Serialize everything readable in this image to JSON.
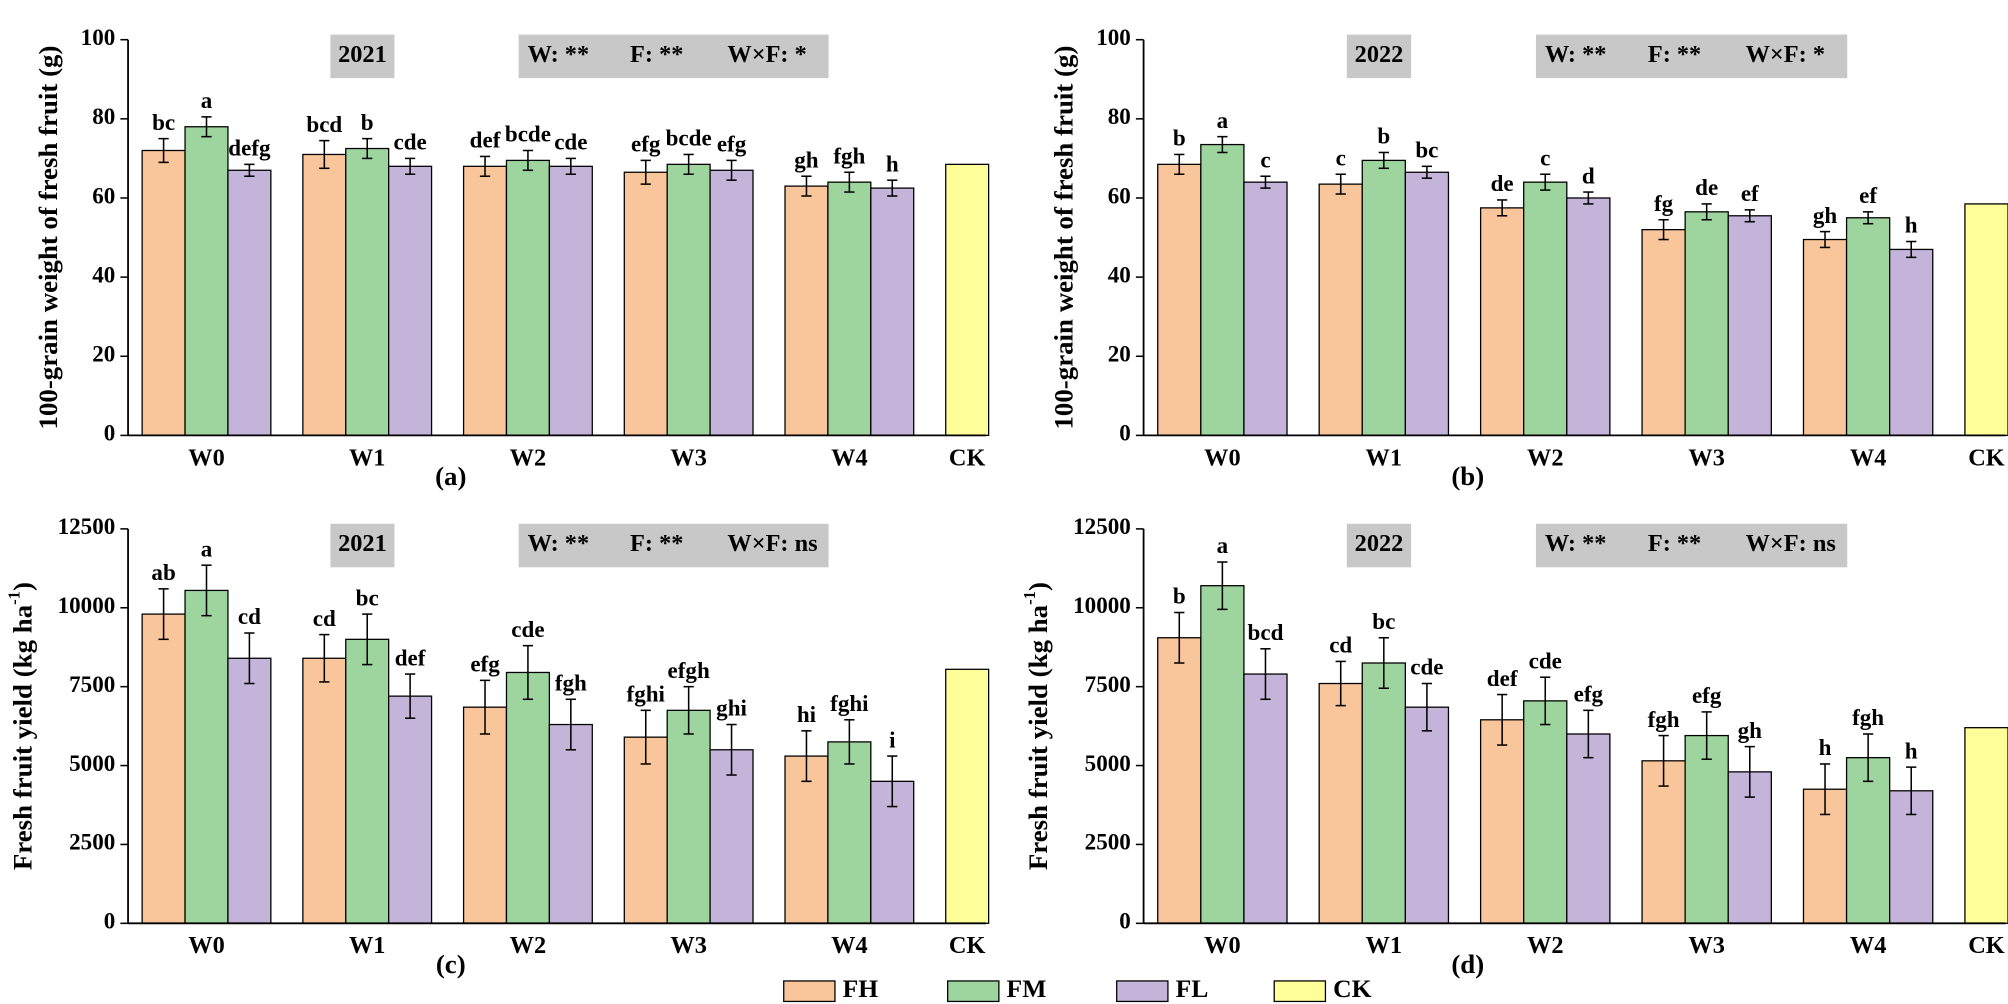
{
  "chart_data": [
    {
      "type": "bar",
      "title": "2021",
      "panel": "(a)",
      "annotations": [
        "W: **",
        "F: **",
        "W×F: *"
      ],
      "ylabel": [
        "100-grain weight of fresh fruit (g)"
      ],
      "categories": [
        "W0",
        "W1",
        "W2",
        "W3",
        "W4",
        "CK"
      ],
      "series": [
        {
          "name": "FH",
          "color": "#f9c59a",
          "values": [
            72,
            71,
            68,
            66.5,
            63,
            null
          ],
          "errors": [
            3,
            3.5,
            2.5,
            3,
            2.5,
            null
          ],
          "letters": [
            "bc",
            "bcd",
            "def",
            "efg",
            "gh",
            null
          ]
        },
        {
          "name": "FM",
          "color": "#9ed59e",
          "values": [
            78,
            72.5,
            69.5,
            68.5,
            64,
            null
          ],
          "errors": [
            2.5,
            2.5,
            2.5,
            2.5,
            2.5,
            null
          ],
          "letters": [
            "a",
            "b",
            "bcde",
            "bcde",
            "fgh",
            null
          ]
        },
        {
          "name": "FL",
          "color": "#c5b4d9",
          "values": [
            67,
            68,
            68,
            67,
            62.5,
            null
          ],
          "errors": [
            1.5,
            2,
            2,
            2.5,
            2,
            null
          ],
          "letters": [
            "defg",
            "cde",
            "cde",
            "efg",
            "h",
            null
          ]
        },
        {
          "name": "CK",
          "color": "#ffff99",
          "values": [
            null,
            null,
            null,
            null,
            null,
            68.5
          ]
        }
      ],
      "ylim": [
        0,
        100
      ],
      "yticks": [
        0,
        20,
        40,
        60,
        80,
        100
      ]
    },
    {
      "type": "bar",
      "title": "2022",
      "panel": "(b)",
      "annotations": [
        "W: **",
        "F: **",
        "W×F: *"
      ],
      "ylabel": [
        "100-grain weight of fresh fruit (g)"
      ],
      "categories": [
        "W0",
        "W1",
        "W2",
        "W3",
        "W4",
        "CK"
      ],
      "series": [
        {
          "name": "FH",
          "color": "#f9c59a",
          "values": [
            68.5,
            63.5,
            57.5,
            52,
            49.5,
            null
          ],
          "errors": [
            2.5,
            2.5,
            2,
            2.5,
            2,
            null
          ],
          "letters": [
            "b",
            "c",
            "de",
            "fg",
            "gh",
            null
          ]
        },
        {
          "name": "FM",
          "color": "#9ed59e",
          "values": [
            73.5,
            69.5,
            64,
            56.5,
            55,
            null
          ],
          "errors": [
            2,
            2,
            2,
            2,
            1.5,
            null
          ],
          "letters": [
            "a",
            "b",
            "c",
            "de",
            "ef",
            null
          ]
        },
        {
          "name": "FL",
          "color": "#c5b4d9",
          "values": [
            64,
            66.5,
            60,
            55.5,
            47,
            null
          ],
          "errors": [
            1.5,
            1.5,
            1.5,
            1.5,
            2,
            null
          ],
          "letters": [
            "c",
            "bc",
            "d",
            "ef",
            "h",
            null
          ]
        },
        {
          "name": "CK",
          "color": "#ffff99",
          "values": [
            null,
            null,
            null,
            null,
            null,
            58.5
          ]
        }
      ],
      "ylim": [
        0,
        100
      ],
      "yticks": [
        0,
        20,
        40,
        60,
        80,
        100
      ]
    },
    {
      "type": "bar",
      "title": "2021",
      "panel": "(c)",
      "annotations": [
        "W: **",
        "F: **",
        "W×F: ns"
      ],
      "ylabel": [
        "Fresh fruit yield (kg ha",
        "-1",
        ")"
      ],
      "categories": [
        "W0",
        "W1",
        "W2",
        "W3",
        "W4",
        "CK"
      ],
      "series": [
        {
          "name": "FH",
          "color": "#f9c59a",
          "values": [
            9800,
            8400,
            6850,
            5900,
            5300,
            null
          ],
          "errors": [
            800,
            750,
            850,
            850,
            800,
            null
          ],
          "letters": [
            "ab",
            "cd",
            "efg",
            "fghi",
            "hi",
            null
          ]
        },
        {
          "name": "FM",
          "color": "#9ed59e",
          "values": [
            10550,
            9000,
            7950,
            6750,
            5750,
            null
          ],
          "errors": [
            800,
            800,
            850,
            750,
            700,
            null
          ],
          "letters": [
            "a",
            "bc",
            "cde",
            "efgh",
            "fghi",
            null
          ]
        },
        {
          "name": "FL",
          "color": "#c5b4d9",
          "values": [
            8400,
            7200,
            6300,
            5500,
            4500,
            null
          ],
          "errors": [
            800,
            700,
            800,
            800,
            800,
            null
          ],
          "letters": [
            "cd",
            "def",
            "fgh",
            "ghi",
            "i",
            null
          ]
        },
        {
          "name": "CK",
          "color": "#ffff99",
          "values": [
            null,
            null,
            null,
            null,
            null,
            8050
          ]
        }
      ],
      "ylim": [
        0,
        12500
      ],
      "yticks": [
        0,
        2500,
        5000,
        7500,
        10000,
        12500
      ]
    },
    {
      "type": "bar",
      "title": "2022",
      "panel": "(d)",
      "annotations": [
        "W: **",
        "F: **",
        "W×F: ns"
      ],
      "ylabel": [
        "Fresh fruit yield (kg ha",
        "-1",
        ")"
      ],
      "categories": [
        "W0",
        "W1",
        "W2",
        "W3",
        "W4",
        "CK"
      ],
      "series": [
        {
          "name": "FH",
          "color": "#f9c59a",
          "values": [
            9050,
            7600,
            6450,
            5150,
            4250,
            null
          ],
          "errors": [
            800,
            700,
            800,
            800,
            800,
            null
          ],
          "letters": [
            "b",
            "cd",
            "def",
            "fgh",
            "h",
            null
          ]
        },
        {
          "name": "FM",
          "color": "#9ed59e",
          "values": [
            10700,
            8250,
            7050,
            5950,
            5250,
            null
          ],
          "errors": [
            750,
            800,
            750,
            750,
            750,
            null
          ],
          "letters": [
            "a",
            "bc",
            "cde",
            "efg",
            "fgh",
            null
          ]
        },
        {
          "name": "FL",
          "color": "#c5b4d9",
          "values": [
            7900,
            6850,
            6000,
            4800,
            4200,
            null
          ],
          "errors": [
            800,
            750,
            750,
            800,
            750,
            null
          ],
          "letters": [
            "bcd",
            "cde",
            "efg",
            "gh",
            "h",
            null
          ]
        },
        {
          "name": "CK",
          "color": "#ffff99",
          "values": [
            null,
            null,
            null,
            null,
            null,
            6200
          ]
        }
      ],
      "ylim": [
        0,
        12500
      ],
      "yticks": [
        0,
        2500,
        5000,
        7500,
        10000,
        12500
      ]
    }
  ]
}
